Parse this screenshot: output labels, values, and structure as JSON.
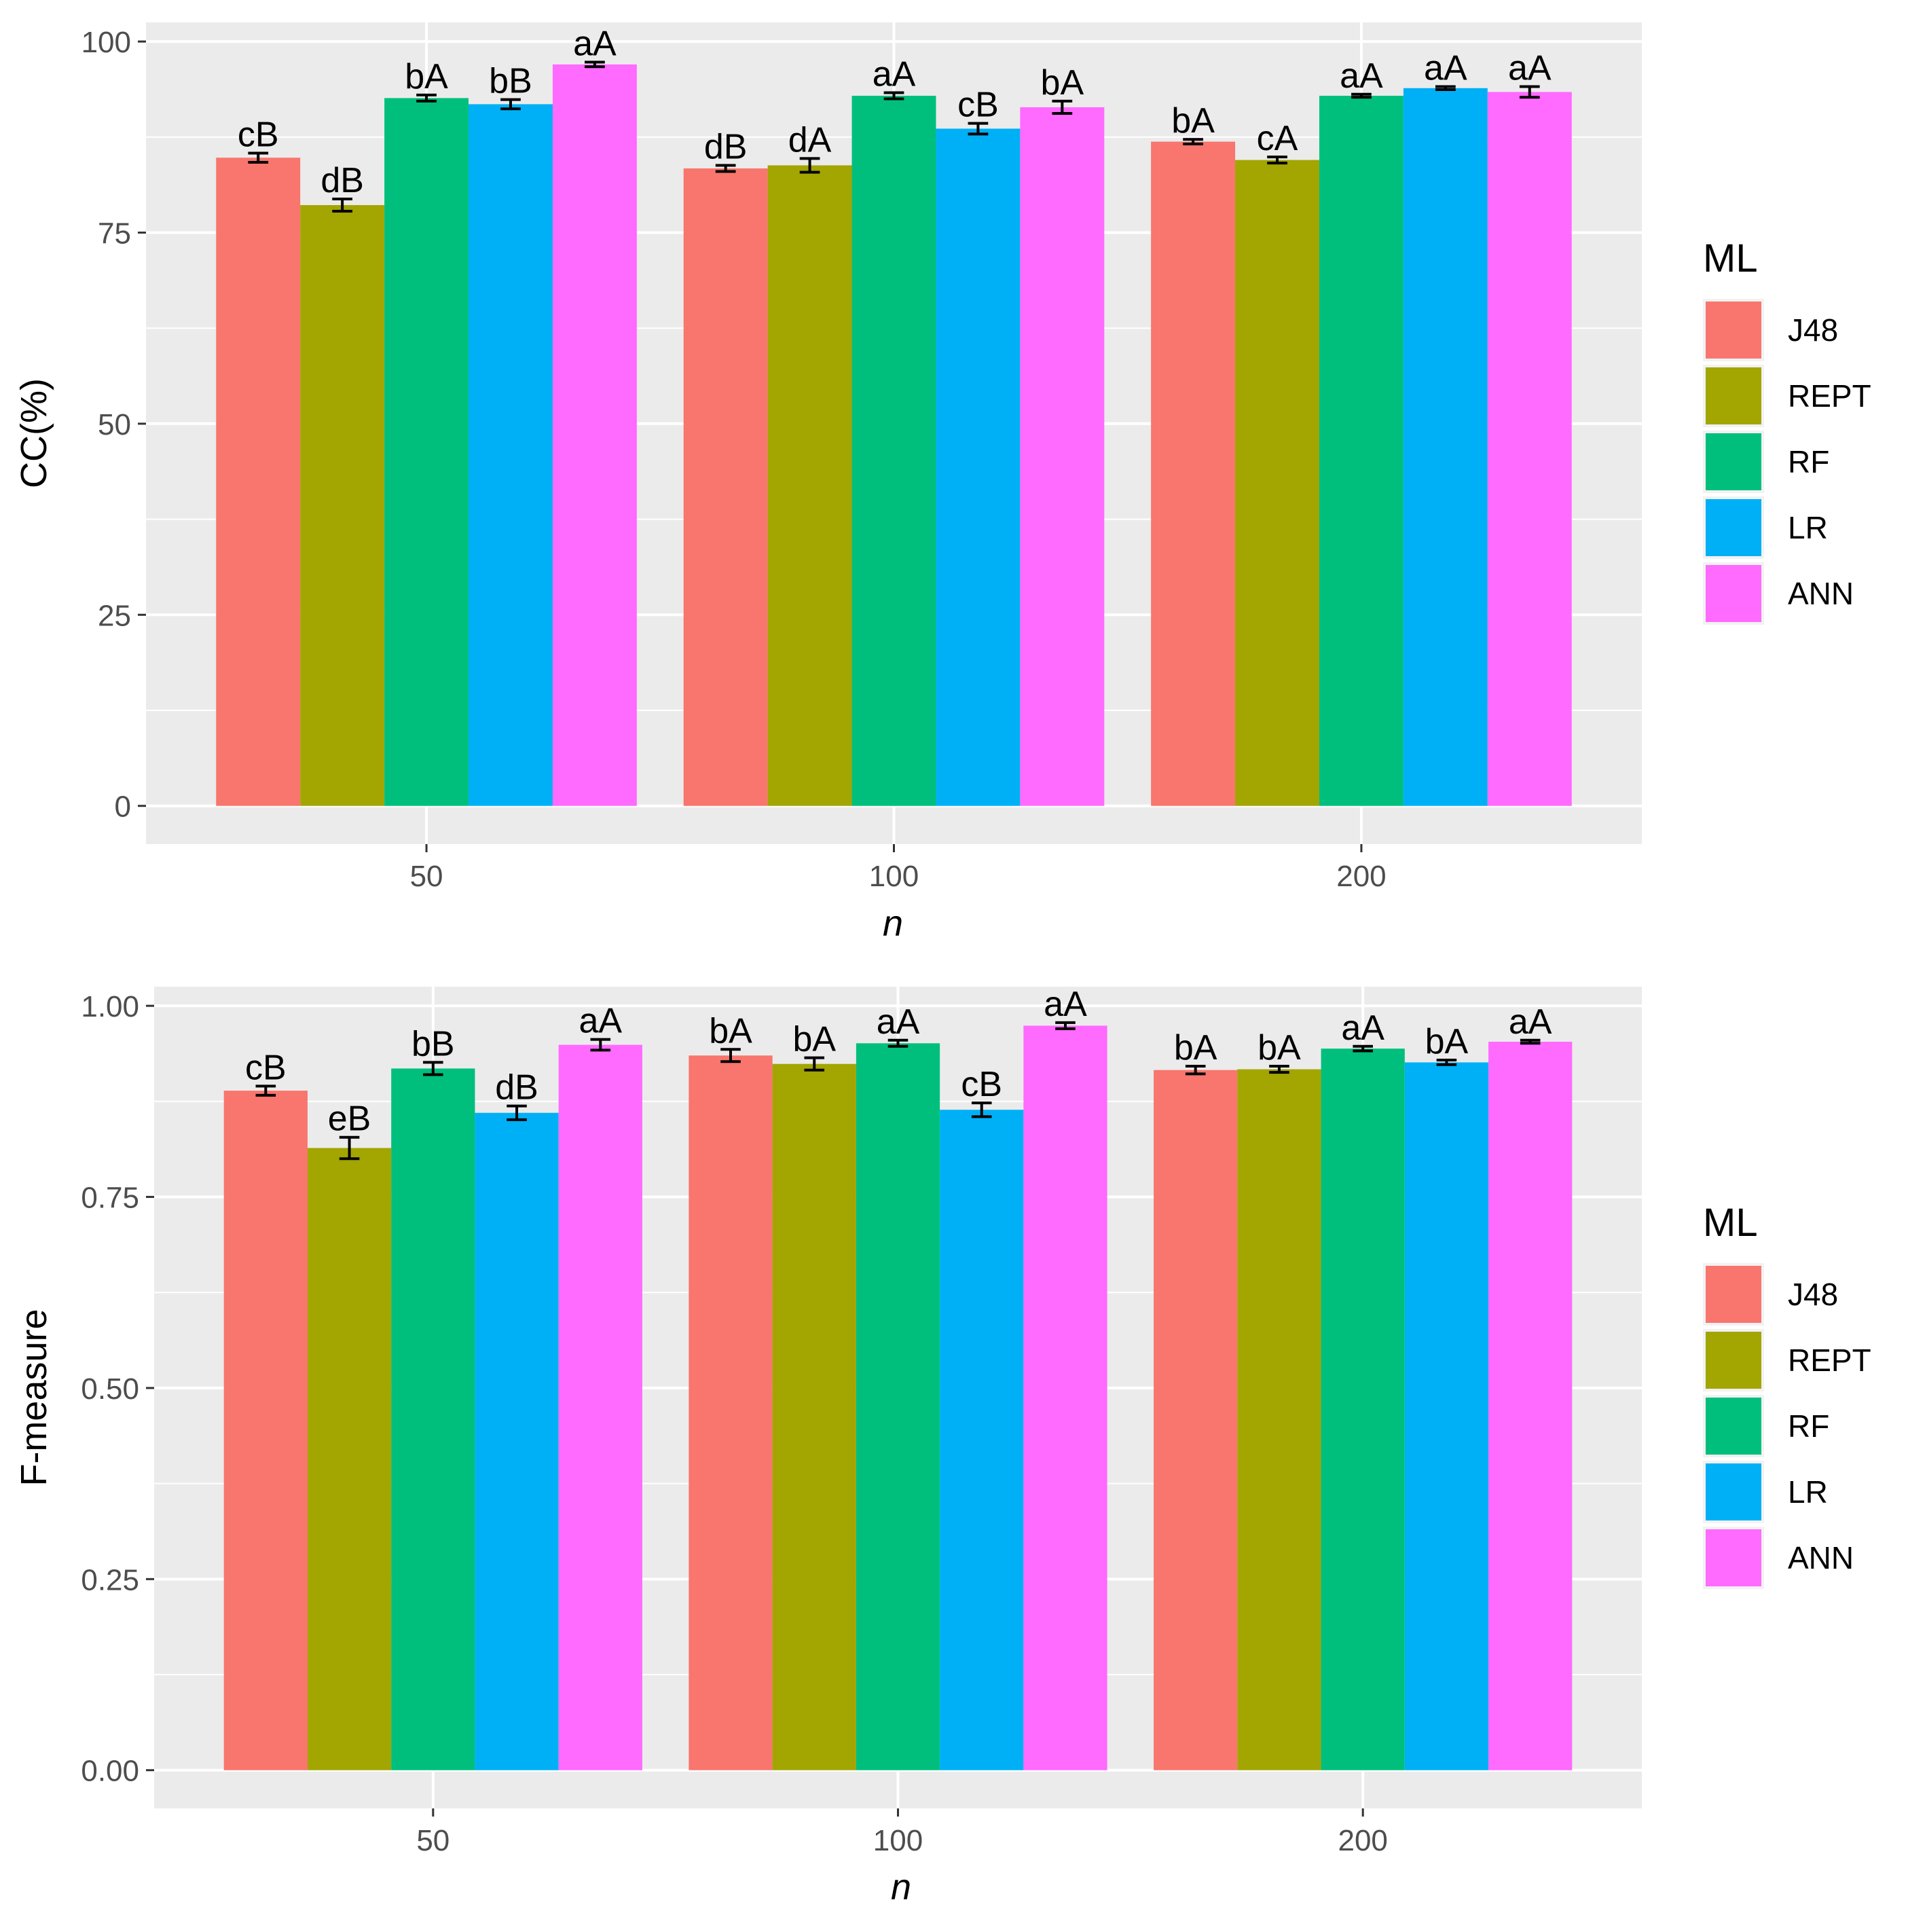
{
  "chart_data": [
    {
      "type": "bar",
      "title": "",
      "xlabel": "n",
      "ylabel": "CC(%)",
      "ylim": [
        -5,
        102.5
      ],
      "yticks": [
        0,
        25,
        50,
        75,
        100
      ],
      "ytick_labels": [
        "0",
        "25",
        "50",
        "75",
        "100"
      ],
      "categories": [
        "50",
        "100",
        "200"
      ],
      "legend": {
        "title": "ML",
        "position": "right"
      },
      "series": [
        {
          "name": "J48",
          "color": "#F8766D",
          "values": [
            84.8,
            83.4,
            86.9
          ],
          "errors": [
            0.6,
            0.4,
            0.3
          ],
          "labels": [
            "cB",
            "dB",
            "bA"
          ]
        },
        {
          "name": "REPT",
          "color": "#A3A500",
          "values": [
            78.6,
            83.8,
            84.5
          ],
          "errors": [
            0.8,
            0.9,
            0.4
          ],
          "labels": [
            "dB",
            "dA",
            "cA"
          ]
        },
        {
          "name": "RF",
          "color": "#00BF7D",
          "values": [
            92.6,
            92.9,
            92.9
          ],
          "errors": [
            0.4,
            0.4,
            0.2
          ],
          "labels": [
            "bA",
            "aA",
            "aA"
          ]
        },
        {
          "name": "LR",
          "color": "#00B0F6",
          "values": [
            91.8,
            88.6,
            93.9
          ],
          "errors": [
            0.6,
            0.7,
            0.2
          ],
          "labels": [
            "bB",
            "cB",
            "aA"
          ]
        },
        {
          "name": "ANN",
          "color": "#FF6AFF",
          "values": [
            97.0,
            91.4,
            93.4
          ],
          "errors": [
            0.3,
            0.8,
            0.7
          ],
          "labels": [
            "aA",
            "bA",
            "aA"
          ]
        }
      ]
    },
    {
      "type": "bar",
      "title": "",
      "xlabel": "n",
      "ylabel": "F-measure",
      "ylim": [
        -0.05,
        1.025
      ],
      "yticks": [
        0,
        0.25,
        0.5,
        0.75,
        1.0
      ],
      "ytick_labels": [
        "0.00",
        "0.25",
        "0.50",
        "0.75",
        "1.00"
      ],
      "categories": [
        "50",
        "100",
        "200"
      ],
      "legend": {
        "title": "ML",
        "position": "right"
      },
      "series": [
        {
          "name": "J48",
          "color": "#F8766D",
          "values": [
            0.889,
            0.935,
            0.916
          ],
          "errors": [
            0.006,
            0.008,
            0.005
          ],
          "labels": [
            "cB",
            "bA",
            "bA"
          ]
        },
        {
          "name": "REPT",
          "color": "#A3A500",
          "values": [
            0.814,
            0.924,
            0.917
          ],
          "errors": [
            0.014,
            0.008,
            0.004
          ],
          "labels": [
            "eB",
            "bA",
            "bA"
          ]
        },
        {
          "name": "RF",
          "color": "#00BF7D",
          "values": [
            0.918,
            0.951,
            0.944
          ],
          "errors": [
            0.008,
            0.004,
            0.003
          ],
          "labels": [
            "bB",
            "aA",
            "aA"
          ]
        },
        {
          "name": "LR",
          "color": "#00B0F6",
          "values": [
            0.86,
            0.864,
            0.926
          ],
          "errors": [
            0.009,
            0.009,
            0.003
          ],
          "labels": [
            "dB",
            "cB",
            "bA"
          ]
        },
        {
          "name": "ANN",
          "color": "#FF6AFF",
          "values": [
            0.949,
            0.974,
            0.953
          ],
          "errors": [
            0.007,
            0.004,
            0.002
          ],
          "labels": [
            "aA",
            "aA",
            "aA"
          ]
        }
      ]
    }
  ]
}
